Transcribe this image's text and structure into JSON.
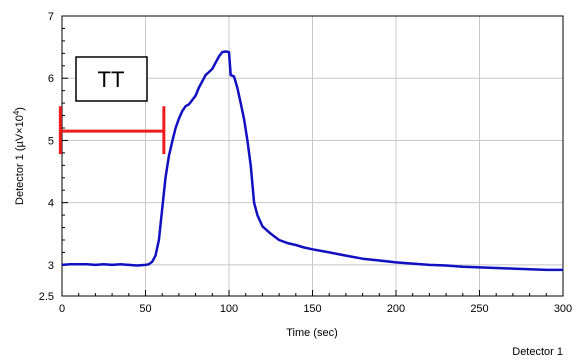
{
  "chart_data": {
    "type": "line",
    "title": "",
    "xlabel": "Time (sec)",
    "ylabel_prefix": "Detector 1 (µV×10",
    "ylabel_exp": "4",
    "ylabel_suffix": ")",
    "footer": "Detector 1",
    "xlim": [
      0,
      300
    ],
    "ylim": [
      2.5,
      7
    ],
    "x_ticks": [
      0,
      50,
      100,
      150,
      200,
      250,
      300
    ],
    "x_tick_labels": [
      "0",
      "50",
      "100",
      "150",
      "200",
      "250",
      "300"
    ],
    "y_ticks": [
      2.5,
      3,
      4,
      5,
      6,
      7
    ],
    "y_tick_labels": [
      "2.5",
      "3",
      "4",
      "5",
      "6",
      "7"
    ],
    "grid": true,
    "line_color": "#1010c0",
    "series": [
      {
        "x": [
          0,
          5,
          10,
          15,
          20,
          25,
          30,
          35,
          40,
          45,
          50,
          52,
          54,
          56,
          58,
          60,
          62,
          64,
          66,
          68,
          70,
          72,
          74,
          76,
          78,
          80,
          82,
          84,
          86,
          88,
          90,
          92,
          94,
          96,
          98,
          100,
          101,
          103,
          105,
          107,
          109,
          111,
          113,
          115,
          117,
          120,
          125,
          130,
          135,
          140,
          145,
          150,
          160,
          170,
          180,
          190,
          200,
          210,
          220,
          230,
          240,
          250,
          260,
          270,
          280,
          290,
          300
        ],
        "y": [
          3.0,
          3.01,
          3.01,
          3.01,
          3.0,
          3.01,
          3.0,
          3.01,
          3.0,
          2.99,
          3.0,
          3.01,
          3.05,
          3.15,
          3.4,
          3.9,
          4.4,
          4.75,
          4.98,
          5.2,
          5.35,
          5.47,
          5.55,
          5.58,
          5.65,
          5.72,
          5.85,
          5.95,
          6.05,
          6.1,
          6.15,
          6.25,
          6.35,
          6.42,
          6.43,
          6.42,
          6.05,
          6.03,
          5.85,
          5.6,
          5.35,
          5.0,
          4.6,
          4.0,
          3.8,
          3.62,
          3.5,
          3.4,
          3.35,
          3.32,
          3.28,
          3.25,
          3.2,
          3.15,
          3.1,
          3.07,
          3.04,
          3.02,
          3.0,
          2.99,
          2.97,
          2.96,
          2.95,
          2.94,
          2.93,
          2.92,
          2.92
        ]
      }
    ],
    "annotation_box": {
      "label": "TT"
    },
    "annotation_bracket": {
      "x_start": -1,
      "x_end": 61,
      "y": 5.15,
      "color": "#ee1c1c"
    }
  }
}
